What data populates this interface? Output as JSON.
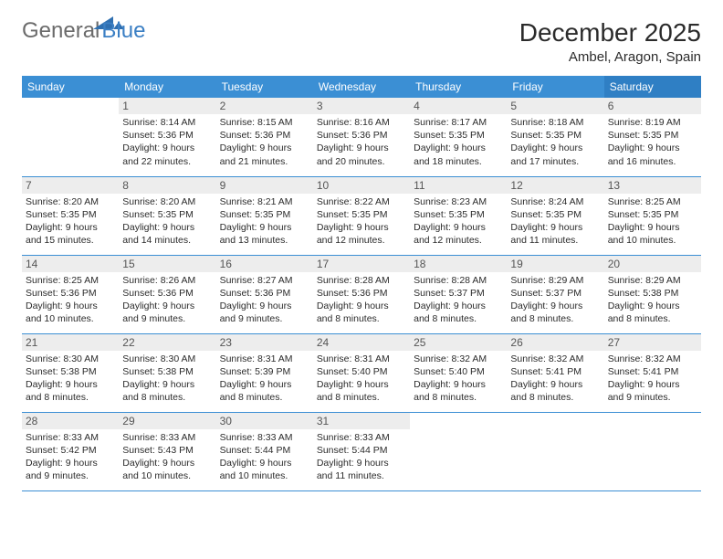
{
  "logo": {
    "part1": "General",
    "part2": "Blue"
  },
  "title": "December 2025",
  "subtitle": "Ambel, Aragon, Spain",
  "colors": {
    "header_bg": "#3b8fd4",
    "header_bg_sat": "#2f7fc4",
    "border": "#3b8fd4",
    "daynum_bg": "#ededed",
    "text": "#2b2b2b"
  },
  "day_labels": [
    "Sunday",
    "Monday",
    "Tuesday",
    "Wednesday",
    "Thursday",
    "Friday",
    "Saturday"
  ],
  "weeks": [
    [
      {
        "n": "",
        "sr": "",
        "ss": "",
        "dl": ""
      },
      {
        "n": "1",
        "sr": "8:14 AM",
        "ss": "5:36 PM",
        "dl": "9 hours and 22 minutes."
      },
      {
        "n": "2",
        "sr": "8:15 AM",
        "ss": "5:36 PM",
        "dl": "9 hours and 21 minutes."
      },
      {
        "n": "3",
        "sr": "8:16 AM",
        "ss": "5:36 PM",
        "dl": "9 hours and 20 minutes."
      },
      {
        "n": "4",
        "sr": "8:17 AM",
        "ss": "5:35 PM",
        "dl": "9 hours and 18 minutes."
      },
      {
        "n": "5",
        "sr": "8:18 AM",
        "ss": "5:35 PM",
        "dl": "9 hours and 17 minutes."
      },
      {
        "n": "6",
        "sr": "8:19 AM",
        "ss": "5:35 PM",
        "dl": "9 hours and 16 minutes."
      }
    ],
    [
      {
        "n": "7",
        "sr": "8:20 AM",
        "ss": "5:35 PM",
        "dl": "9 hours and 15 minutes."
      },
      {
        "n": "8",
        "sr": "8:20 AM",
        "ss": "5:35 PM",
        "dl": "9 hours and 14 minutes."
      },
      {
        "n": "9",
        "sr": "8:21 AM",
        "ss": "5:35 PM",
        "dl": "9 hours and 13 minutes."
      },
      {
        "n": "10",
        "sr": "8:22 AM",
        "ss": "5:35 PM",
        "dl": "9 hours and 12 minutes."
      },
      {
        "n": "11",
        "sr": "8:23 AM",
        "ss": "5:35 PM",
        "dl": "9 hours and 12 minutes."
      },
      {
        "n": "12",
        "sr": "8:24 AM",
        "ss": "5:35 PM",
        "dl": "9 hours and 11 minutes."
      },
      {
        "n": "13",
        "sr": "8:25 AM",
        "ss": "5:35 PM",
        "dl": "9 hours and 10 minutes."
      }
    ],
    [
      {
        "n": "14",
        "sr": "8:25 AM",
        "ss": "5:36 PM",
        "dl": "9 hours and 10 minutes."
      },
      {
        "n": "15",
        "sr": "8:26 AM",
        "ss": "5:36 PM",
        "dl": "9 hours and 9 minutes."
      },
      {
        "n": "16",
        "sr": "8:27 AM",
        "ss": "5:36 PM",
        "dl": "9 hours and 9 minutes."
      },
      {
        "n": "17",
        "sr": "8:28 AM",
        "ss": "5:36 PM",
        "dl": "9 hours and 8 minutes."
      },
      {
        "n": "18",
        "sr": "8:28 AM",
        "ss": "5:37 PM",
        "dl": "9 hours and 8 minutes."
      },
      {
        "n": "19",
        "sr": "8:29 AM",
        "ss": "5:37 PM",
        "dl": "9 hours and 8 minutes."
      },
      {
        "n": "20",
        "sr": "8:29 AM",
        "ss": "5:38 PM",
        "dl": "9 hours and 8 minutes."
      }
    ],
    [
      {
        "n": "21",
        "sr": "8:30 AM",
        "ss": "5:38 PM",
        "dl": "9 hours and 8 minutes."
      },
      {
        "n": "22",
        "sr": "8:30 AM",
        "ss": "5:38 PM",
        "dl": "9 hours and 8 minutes."
      },
      {
        "n": "23",
        "sr": "8:31 AM",
        "ss": "5:39 PM",
        "dl": "9 hours and 8 minutes."
      },
      {
        "n": "24",
        "sr": "8:31 AM",
        "ss": "5:40 PM",
        "dl": "9 hours and 8 minutes."
      },
      {
        "n": "25",
        "sr": "8:32 AM",
        "ss": "5:40 PM",
        "dl": "9 hours and 8 minutes."
      },
      {
        "n": "26",
        "sr": "8:32 AM",
        "ss": "5:41 PM",
        "dl": "9 hours and 8 minutes."
      },
      {
        "n": "27",
        "sr": "8:32 AM",
        "ss": "5:41 PM",
        "dl": "9 hours and 9 minutes."
      }
    ],
    [
      {
        "n": "28",
        "sr": "8:33 AM",
        "ss": "5:42 PM",
        "dl": "9 hours and 9 minutes."
      },
      {
        "n": "29",
        "sr": "8:33 AM",
        "ss": "5:43 PM",
        "dl": "9 hours and 10 minutes."
      },
      {
        "n": "30",
        "sr": "8:33 AM",
        "ss": "5:44 PM",
        "dl": "9 hours and 10 minutes."
      },
      {
        "n": "31",
        "sr": "8:33 AM",
        "ss": "5:44 PM",
        "dl": "9 hours and 11 minutes."
      },
      {
        "n": "",
        "sr": "",
        "ss": "",
        "dl": ""
      },
      {
        "n": "",
        "sr": "",
        "ss": "",
        "dl": ""
      },
      {
        "n": "",
        "sr": "",
        "ss": "",
        "dl": ""
      }
    ]
  ]
}
